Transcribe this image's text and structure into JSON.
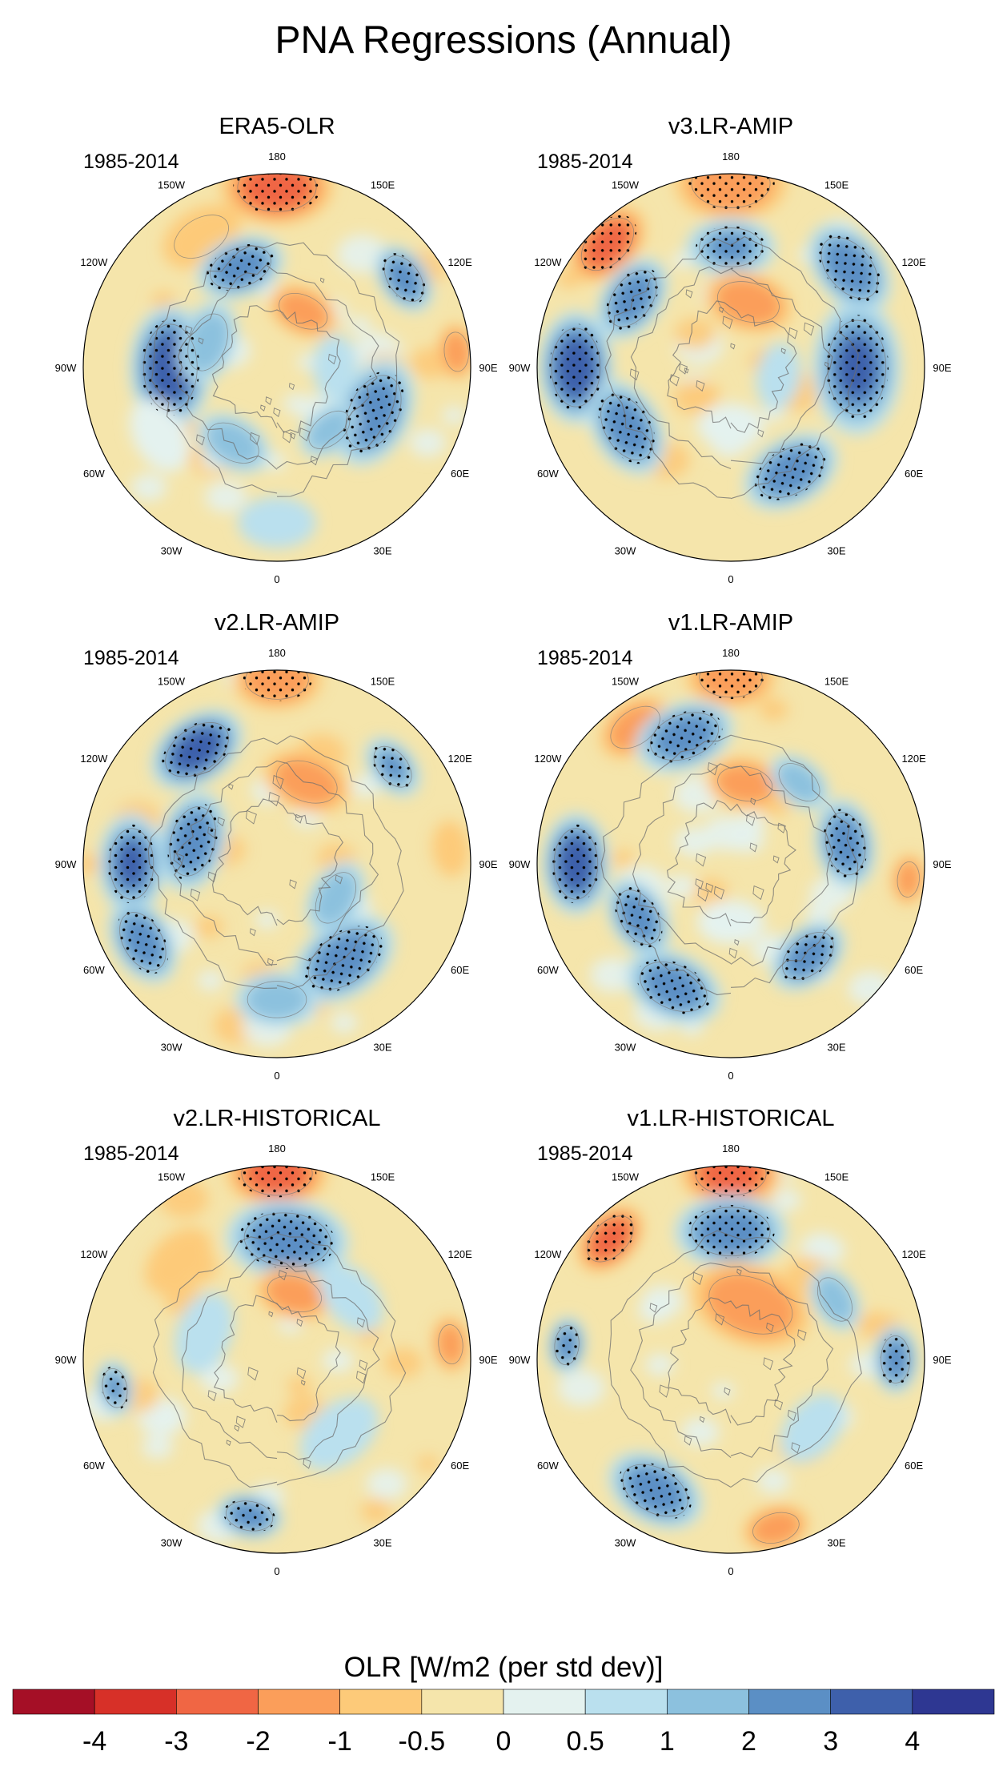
{
  "chart_data": {
    "type": "heatmap",
    "title": "PNA Regressions (Annual)",
    "projection": "north polar stereographic",
    "period": "1985-2014",
    "longitude_labels": {
      "top": "180",
      "bottom": "0",
      "left": [
        "150W",
        "120W",
        "90W",
        "60W",
        "30W"
      ],
      "right": [
        "150E",
        "120E",
        "90E",
        "60E",
        "30E"
      ]
    },
    "panels": [
      {
        "name": "ERA5-OLR",
        "period": "1985-2014"
      },
      {
        "name": "v3.LR-AMIP",
        "period": "1985-2014"
      },
      {
        "name": "v2.LR-AMIP",
        "period": "1985-2014"
      },
      {
        "name": "v1.LR-AMIP",
        "period": "1985-2014"
      },
      {
        "name": "v2.LR-HISTORICAL",
        "period": "1985-2014"
      },
      {
        "name": "v1.LR-HISTORICAL",
        "period": "1985-2014"
      }
    ],
    "colorbar": {
      "title": "OLR [W/m2 (per std dev)]",
      "ticks": [
        "-4",
        "-3",
        "-2",
        "-1",
        "-0.5",
        "0",
        "0.5",
        "1",
        "2",
        "3",
        "4"
      ],
      "levels": [
        -4,
        -3,
        -2,
        -1,
        -0.5,
        0,
        0.5,
        1,
        2,
        3,
        4
      ],
      "colors": [
        "#a50f26",
        "#d73028",
        "#f06644",
        "#fb9e5a",
        "#fdca79",
        "#f5e5ab",
        "#e4f2ef",
        "#bae0ee",
        "#8cc1de",
        "#5b8fc5",
        "#3e60ab",
        "#2e3792"
      ]
    }
  }
}
